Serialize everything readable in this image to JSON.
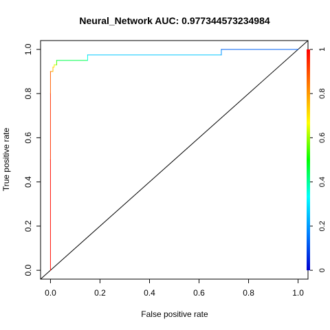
{
  "chart_data": {
    "type": "line",
    "title": "Neural_Network  AUC: 0.977344573234984",
    "xlabel": "False positive rate",
    "ylabel": "True positive rate",
    "xlim": [
      -0.04,
      1.04
    ],
    "ylim": [
      -0.04,
      1.04
    ],
    "x_ticks": [
      0.0,
      0.2,
      0.4,
      0.6,
      0.8,
      1.0
    ],
    "x_tick_labels": [
      "0.0",
      "0.2",
      "0.4",
      "0.6",
      "0.8",
      "1.0"
    ],
    "y_ticks": [
      0.0,
      0.2,
      0.4,
      0.6,
      0.8,
      1.0
    ],
    "y_tick_labels": [
      "0.0",
      "0.2",
      "0.4",
      "0.6",
      "0.8",
      "1.0"
    ],
    "grid": false,
    "diagonal_reference": {
      "x": [
        0,
        1
      ],
      "y": [
        0,
        1
      ],
      "color": "#000000"
    },
    "series": [
      {
        "x": [
          0.0,
          0.0,
          0.0,
          0.0,
          0.005,
          0.005,
          0.01,
          0.01,
          0.015,
          0.015,
          0.025,
          0.025,
          0.15,
          0.15,
          0.69,
          0.69,
          1.0
        ],
        "y": [
          0.0,
          0.5,
          0.8,
          0.9,
          0.9,
          0.9,
          0.9,
          0.92,
          0.92,
          0.93,
          0.93,
          0.95,
          0.95,
          0.975,
          0.975,
          1.0,
          1.0
        ],
        "threshold": [
          1.0,
          0.97,
          0.9,
          0.85,
          0.82,
          0.8,
          0.77,
          0.74,
          0.7,
          0.66,
          0.6,
          0.5,
          0.4,
          0.3,
          0.22,
          0.15,
          0.1
        ]
      }
    ],
    "colorbar": {
      "position": "right",
      "range": [
        0,
        1
      ],
      "ticks": [
        0,
        0.2,
        0.4,
        0.6,
        0.8,
        1
      ],
      "tick_labels": [
        "0",
        "0.2",
        "0.4",
        "0.6",
        "0.8",
        "1"
      ],
      "colors": [
        "#0000d0",
        "#0080ff",
        "#00ffff",
        "#00ff00",
        "#ffff00",
        "#ff8000",
        "#ff0000"
      ]
    }
  }
}
